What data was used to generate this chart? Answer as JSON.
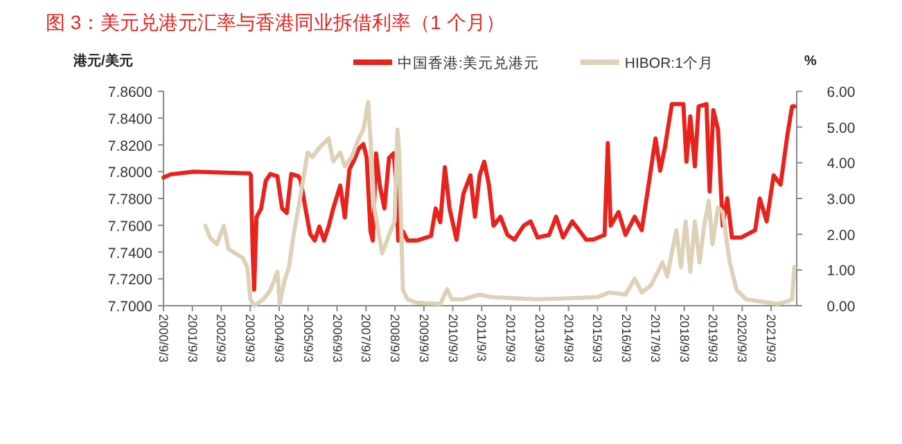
{
  "chart_data": {
    "type": "line",
    "title": "图 3：美元兑港元汇率与香港同业拆借利率（1 个月）",
    "ylabel": "港元/美元",
    "y2label": "%",
    "legend": "top",
    "xlim": [
      "2000-09-03",
      "2022-07-23"
    ],
    "xticks": [
      {
        "value": "2000-09-03",
        "label": "2000/9/3"
      },
      {
        "value": "2001-09-03",
        "label": "2001/9/3"
      },
      {
        "value": "2002-09-03",
        "label": "2002/9/3"
      },
      {
        "value": "2003-09-03",
        "label": "2003/9/3"
      },
      {
        "value": "2004-09-03",
        "label": "2004/9/3"
      },
      {
        "value": "2005-09-03",
        "label": "2005/9/3"
      },
      {
        "value": "2006-09-03",
        "label": "2006/9/3"
      },
      {
        "value": "2007-09-03",
        "label": "2007/9/3"
      },
      {
        "value": "2008-09-03",
        "label": "2008/9/3"
      },
      {
        "value": "2009-09-03",
        "label": "2009/9/3"
      },
      {
        "value": "2010-09-03",
        "label": "2010/9/3"
      },
      {
        "value": "2011-09-03",
        "label": "2011/9/3"
      },
      {
        "value": "2012-09-03",
        "label": "2012/9/3"
      },
      {
        "value": "2013-09-03",
        "label": "2013/9/3"
      },
      {
        "value": "2014-09-03",
        "label": "2014/9/3"
      },
      {
        "value": "2015-09-03",
        "label": "2015/9/3"
      },
      {
        "value": "2016-09-03",
        "label": "2016/9/3"
      },
      {
        "value": "2017-09-03",
        "label": "2017/9/3"
      },
      {
        "value": "2018-09-03",
        "label": "2018/9/3"
      },
      {
        "value": "2019-09-03",
        "label": "2019/9/3"
      },
      {
        "value": "2020-09-03",
        "label": "2020/9/3"
      },
      {
        "value": "2021-09-03",
        "label": "2021/9/3"
      }
    ],
    "ylim": [
      7.7,
      7.86
    ],
    "yticks": [
      {
        "value": 7.7,
        "label": "7.7000"
      },
      {
        "value": 7.72,
        "label": "7.7200"
      },
      {
        "value": 7.74,
        "label": "7.7400"
      },
      {
        "value": 7.76,
        "label": "7.7600"
      },
      {
        "value": 7.78,
        "label": "7.7800"
      },
      {
        "value": 7.8,
        "label": "7.8000"
      },
      {
        "value": 7.82,
        "label": "7.8200"
      },
      {
        "value": 7.84,
        "label": "7.8400"
      },
      {
        "value": 7.86,
        "label": "7.8600"
      }
    ],
    "y2lim": [
      0,
      6
    ],
    "y2ticks": [
      {
        "value": 0,
        "label": "0.00"
      },
      {
        "value": 1,
        "label": "1.00"
      },
      {
        "value": 2,
        "label": "2.00"
      },
      {
        "value": 3,
        "label": "3.00"
      },
      {
        "value": 4,
        "label": "4.00"
      },
      {
        "value": 5,
        "label": "5.00"
      },
      {
        "value": 6,
        "label": "6.00"
      }
    ],
    "series": [
      {
        "name": "中国香港:美元兑港元",
        "color": "#e8221c",
        "x": [
          "2000-09-03",
          "2000-12-01",
          "2001-09-20",
          "2003-08-26",
          "2003-09-11",
          "2003-09-23",
          "2003-10-05",
          "2003-10-22",
          "2003-11-21",
          "2004-01-19",
          "2004-03-17",
          "2004-05-15",
          "2004-08-11",
          "2004-10-09",
          "2004-12-07",
          "2005-02-02",
          "2005-05-04",
          "2005-06-02",
          "2005-07-31",
          "2005-09-27",
          "2005-11-25",
          "2006-01-23",
          "2006-03-22",
          "2006-05-19",
          "2006-07-17",
          "2006-10-13",
          "2006-12-10",
          "2007-02-06",
          "2007-04-06",
          "2007-06-04",
          "2007-08-01",
          "2007-09-12",
          "2007-10-30",
          "2007-11-28",
          "2008-01-08",
          "2008-02-24",
          "2008-04-23",
          "2008-06-20",
          "2008-08-18",
          "2008-09-16",
          "2008-10-15",
          "2008-12-12",
          "2009-02-09",
          "2009-06-07",
          "2009-12-02",
          "2010-01-30",
          "2010-03-29",
          "2010-05-26",
          "2010-07-24",
          "2010-10-20",
          "2011-01-15",
          "2011-04-13",
          "2011-06-10",
          "2011-08-08",
          "2011-10-05",
          "2011-12-02",
          "2012-01-30",
          "2012-04-27",
          "2012-07-24",
          "2012-10-20",
          "2013-02-14",
          "2013-05-12",
          "2013-08-08",
          "2014-01-01",
          "2014-03-30",
          "2014-06-25",
          "2014-10-20",
          "2015-01-15",
          "2015-04-13",
          "2015-07-09",
          "2015-12-02",
          "2016-01-12",
          "2016-02-17",
          "2016-05-26",
          "2016-08-22",
          "2016-12-16",
          "2017-03-15",
          "2017-06-10",
          "2017-09-05",
          "2017-11-03",
          "2018-01-01",
          "2018-03-30",
          "2018-08-22",
          "2018-10-01",
          "2018-11-18",
          "2019-01-15",
          "2019-03-03",
          "2019-06-10",
          "2019-07-20",
          "2019-09-05",
          "2019-11-03",
          "2020-01-01",
          "2020-02-28",
          "2020-04-27",
          "2020-08-22",
          "2021-02-14",
          "2021-04-13",
          "2021-07-09",
          "2021-10-05",
          "2022-01-01",
          "2022-03-30",
          "2022-05-26",
          "2022-06-24"
        ],
        "values": [
          7.7956,
          7.798,
          7.8,
          7.7987,
          7.7974,
          7.766,
          7.739,
          7.712,
          7.766,
          7.7726,
          7.7932,
          7.7983,
          7.7966,
          7.7726,
          7.7692,
          7.7983,
          7.7966,
          7.7932,
          7.7726,
          7.7538,
          7.7486,
          7.759,
          7.7486,
          7.759,
          7.7726,
          7.7897,
          7.7658,
          7.8017,
          7.8086,
          7.8171,
          7.8206,
          7.8103,
          7.7555,
          7.7486,
          7.8137,
          7.7897,
          7.7726,
          7.8103,
          7.8137,
          7.7932,
          7.7486,
          7.7555,
          7.7486,
          7.7486,
          7.752,
          7.7726,
          7.7623,
          7.8034,
          7.7726,
          7.7493,
          7.7835,
          7.7973,
          7.7664,
          7.7973,
          7.8075,
          7.7904,
          7.7597,
          7.7664,
          7.7528,
          7.7493,
          7.7597,
          7.7629,
          7.7509,
          7.7528,
          7.7664,
          7.7509,
          7.7629,
          7.7563,
          7.7493,
          7.7493,
          7.7528,
          7.8213,
          7.7597,
          7.7699,
          7.7528,
          7.7664,
          7.7563,
          7.7904,
          7.8248,
          7.8008,
          7.8179,
          7.8504,
          7.8504,
          7.8075,
          7.8413,
          7.804,
          7.8487,
          7.8504,
          7.7853,
          7.8459,
          7.8315,
          7.7597,
          7.7801,
          7.7509,
          7.7509,
          7.7563,
          7.78,
          7.7629,
          7.7973,
          7.7904,
          7.8283,
          7.8488,
          7.8488
        ]
      },
      {
        "name": "HIBOR:1个月",
        "color": "#ddd2b8",
        "axis": "y2",
        "x": [
          "2002-02-14",
          "2002-04-13",
          "2002-07-09",
          "2002-10-05",
          "2002-12-02",
          "2003-03-03",
          "2003-05-30",
          "2003-07-27",
          "2003-09-06",
          "2003-10-22",
          "2004-02-17",
          "2004-05-15",
          "2004-08-11",
          "2004-09-10",
          "2004-11-07",
          "2005-01-04",
          "2005-03-03",
          "2005-05-04",
          "2005-07-01",
          "2005-08-28",
          "2005-10-27",
          "2006-01-23",
          "2006-05-19",
          "2006-07-17",
          "2006-10-13",
          "2006-12-10",
          "2007-03-07",
          "2007-06-04",
          "2007-08-01",
          "2007-10-01",
          "2007-10-30",
          "2007-12-17",
          "2008-02-14",
          "2008-03-26",
          "2008-06-20",
          "2008-08-29",
          "2008-10-04",
          "2008-10-27",
          "2008-12-12",
          "2009-02-09",
          "2009-06-07",
          "2010-03-29",
          "2010-06-24",
          "2010-08-22",
          "2011-01-15",
          "2011-08-08",
          "2012-01-01",
          "2012-10-20",
          "2013-08-08",
          "2014-09-20",
          "2015-09-05",
          "2016-01-30",
          "2016-08-22",
          "2016-12-16",
          "2017-03-15",
          "2017-07-09",
          "2017-12-02",
          "2018-01-30",
          "2018-05-26",
          "2018-07-24",
          "2018-09-20",
          "2018-11-18",
          "2019-01-15",
          "2019-03-15",
          "2019-05-12",
          "2019-07-09",
          "2019-08-24",
          "2019-11-03",
          "2020-01-01",
          "2020-03-30",
          "2020-06-25",
          "2020-10-20",
          "2021-04-13",
          "2021-12-02",
          "2022-03-30",
          "2022-05-26",
          "2022-06-24"
        ],
        "values": [
          2.24,
          1.91,
          1.72,
          2.24,
          1.59,
          1.46,
          1.34,
          1.08,
          0.18,
          0,
          0.18,
          0.44,
          0.95,
          0.05,
          0.69,
          1.08,
          1.98,
          2.75,
          3.52,
          4.29,
          4.16,
          4.42,
          4.68,
          4.03,
          4.29,
          3.9,
          4.16,
          4.68,
          4.93,
          5.7,
          4.68,
          2.75,
          1.98,
          1.46,
          1.98,
          2.36,
          4.93,
          4.29,
          0.44,
          0.18,
          0.08,
          0.05,
          0.46,
          0.18,
          0.18,
          0.31,
          0.24,
          0.21,
          0.18,
          0.21,
          0.24,
          0.37,
          0.31,
          0.76,
          0.37,
          0.57,
          1.21,
          0.82,
          2.11,
          1.08,
          2.36,
          0.95,
          2.36,
          1.21,
          2.24,
          2.94,
          1.72,
          2.75,
          2.62,
          1.21,
          0.44,
          0.18,
          0.12,
          0.05,
          0.12,
          0.18,
          1.08
        ]
      }
    ]
  }
}
